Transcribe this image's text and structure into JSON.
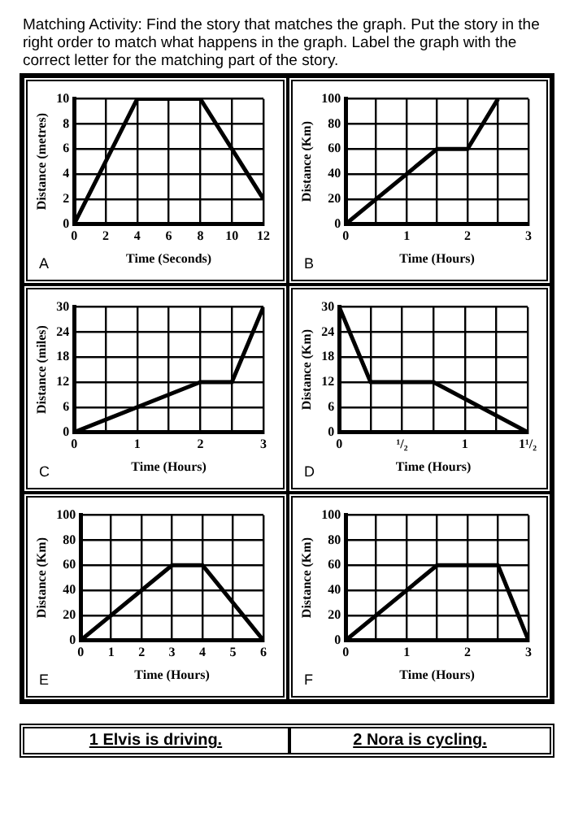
{
  "chart_data": [
    {
      "type": "other",
      "annotations": [
        "Matching Activity: Find the story that matches the graph. Put the story in the right order to match what happens in the graph. Label the graph with the correct letter for the matching part of the story."
      ]
    },
    {
      "type": "line",
      "xlabel": "Time (Seconds)",
      "ylabel": "Distance (metres)",
      "x": [
        0,
        4,
        8,
        12
      ],
      "values": [
        0,
        10,
        10,
        2
      ],
      "color": "#000000",
      "xlim": [
        0,
        12
      ],
      "ylim": [
        0,
        10
      ],
      "xticks": [
        0,
        2,
        4,
        6,
        8,
        10,
        12
      ],
      "yticks": [
        0,
        2,
        4,
        6,
        8,
        10
      ],
      "grid": true,
      "legend": false,
      "marker": "none",
      "line_style": "solid",
      "annotations": [
        "A"
      ]
    },
    {
      "type": "line",
      "xlabel": "Time (Hours)",
      "ylabel": "Distance (Km)",
      "x": [
        0,
        1.5,
        2,
        2.5
      ],
      "values": [
        0,
        60,
        60,
        100
      ],
      "color": "#000000",
      "xlim": [
        0,
        3
      ],
      "ylim": [
        0,
        100
      ],
      "xticks": [
        0,
        {
          "value": 0.5,
          "label": null
        },
        1,
        {
          "value": 1.5,
          "label": null
        },
        2,
        {
          "value": 2.5,
          "label": null
        },
        3
      ],
      "yticks": [
        0,
        20,
        40,
        60,
        80,
        100
      ],
      "grid": true,
      "legend": false,
      "marker": "none",
      "line_style": "solid",
      "annotations": [
        "B"
      ]
    },
    {
      "type": "line",
      "xlabel": "Time (Hours)",
      "ylabel": "Distance (miles)",
      "x": [
        0,
        2,
        2.5,
        3
      ],
      "values": [
        0,
        12,
        12,
        30
      ],
      "color": "#000000",
      "xlim": [
        0,
        3
      ],
      "ylim": [
        0,
        30
      ],
      "xticks": [
        0,
        {
          "value": 0.5,
          "label": null
        },
        1,
        {
          "value": 1.5,
          "label": null
        },
        2,
        {
          "value": 2.5,
          "label": null
        },
        3
      ],
      "yticks": [
        0,
        6,
        12,
        18,
        24,
        30
      ],
      "grid": true,
      "legend": false,
      "marker": "none",
      "line_style": "solid",
      "annotations": [
        "C"
      ]
    },
    {
      "type": "line",
      "xlabel": "Time (Hours)",
      "ylabel": "Distance (Km)",
      "x": [
        0,
        0.25,
        0.75,
        1.5
      ],
      "values": [
        30,
        12,
        12,
        0
      ],
      "color": "#000000",
      "xlim": [
        0,
        1.5
      ],
      "ylim": [
        0,
        30
      ],
      "xticks": [
        0,
        {
          "value": 0.25,
          "label": null
        },
        {
          "value": 0.5,
          "label": "¹/₂"
        },
        {
          "value": 0.75,
          "label": null
        },
        1,
        {
          "value": 1.25,
          "label": null
        },
        {
          "value": 1.5,
          "label": "1¹/₂"
        }
      ],
      "yticks": [
        0,
        6,
        12,
        18,
        24,
        30
      ],
      "grid": true,
      "legend": false,
      "marker": "none",
      "line_style": "solid",
      "annotations": [
        "D"
      ]
    },
    {
      "type": "line",
      "xlabel": "Time (Hours)",
      "ylabel": "Distance (Km)",
      "x": [
        0,
        3,
        4,
        6
      ],
      "values": [
        0,
        60,
        60,
        0
      ],
      "color": "#000000",
      "xlim": [
        0,
        6
      ],
      "ylim": [
        0,
        100
      ],
      "xticks": [
        0,
        1,
        2,
        3,
        4,
        5,
        6
      ],
      "yticks": [
        0,
        20,
        40,
        60,
        80,
        100
      ],
      "grid": true,
      "legend": false,
      "marker": "none",
      "line_style": "solid",
      "annotations": [
        "E"
      ]
    },
    {
      "type": "line",
      "xlabel": "Time (Hours)",
      "ylabel": "Distance (Km)",
      "x": [
        0,
        1.5,
        2.5,
        3
      ],
      "values": [
        0,
        60,
        60,
        0
      ],
      "color": "#000000",
      "xlim": [
        0,
        3
      ],
      "ylim": [
        0,
        100
      ],
      "xticks": [
        0,
        {
          "value": 0.5,
          "label": null
        },
        1,
        {
          "value": 1.5,
          "label": null
        },
        2,
        {
          "value": 2.5,
          "label": null
        },
        3
      ],
      "yticks": [
        0,
        20,
        40,
        60,
        80,
        100
      ],
      "grid": true,
      "legend": false,
      "marker": "none",
      "line_style": "solid",
      "annotations": [
        "F"
      ]
    },
    {
      "type": "other",
      "annotations": [
        "1  Elvis is driving.",
        "2  Nora is cycling."
      ]
    }
  ]
}
